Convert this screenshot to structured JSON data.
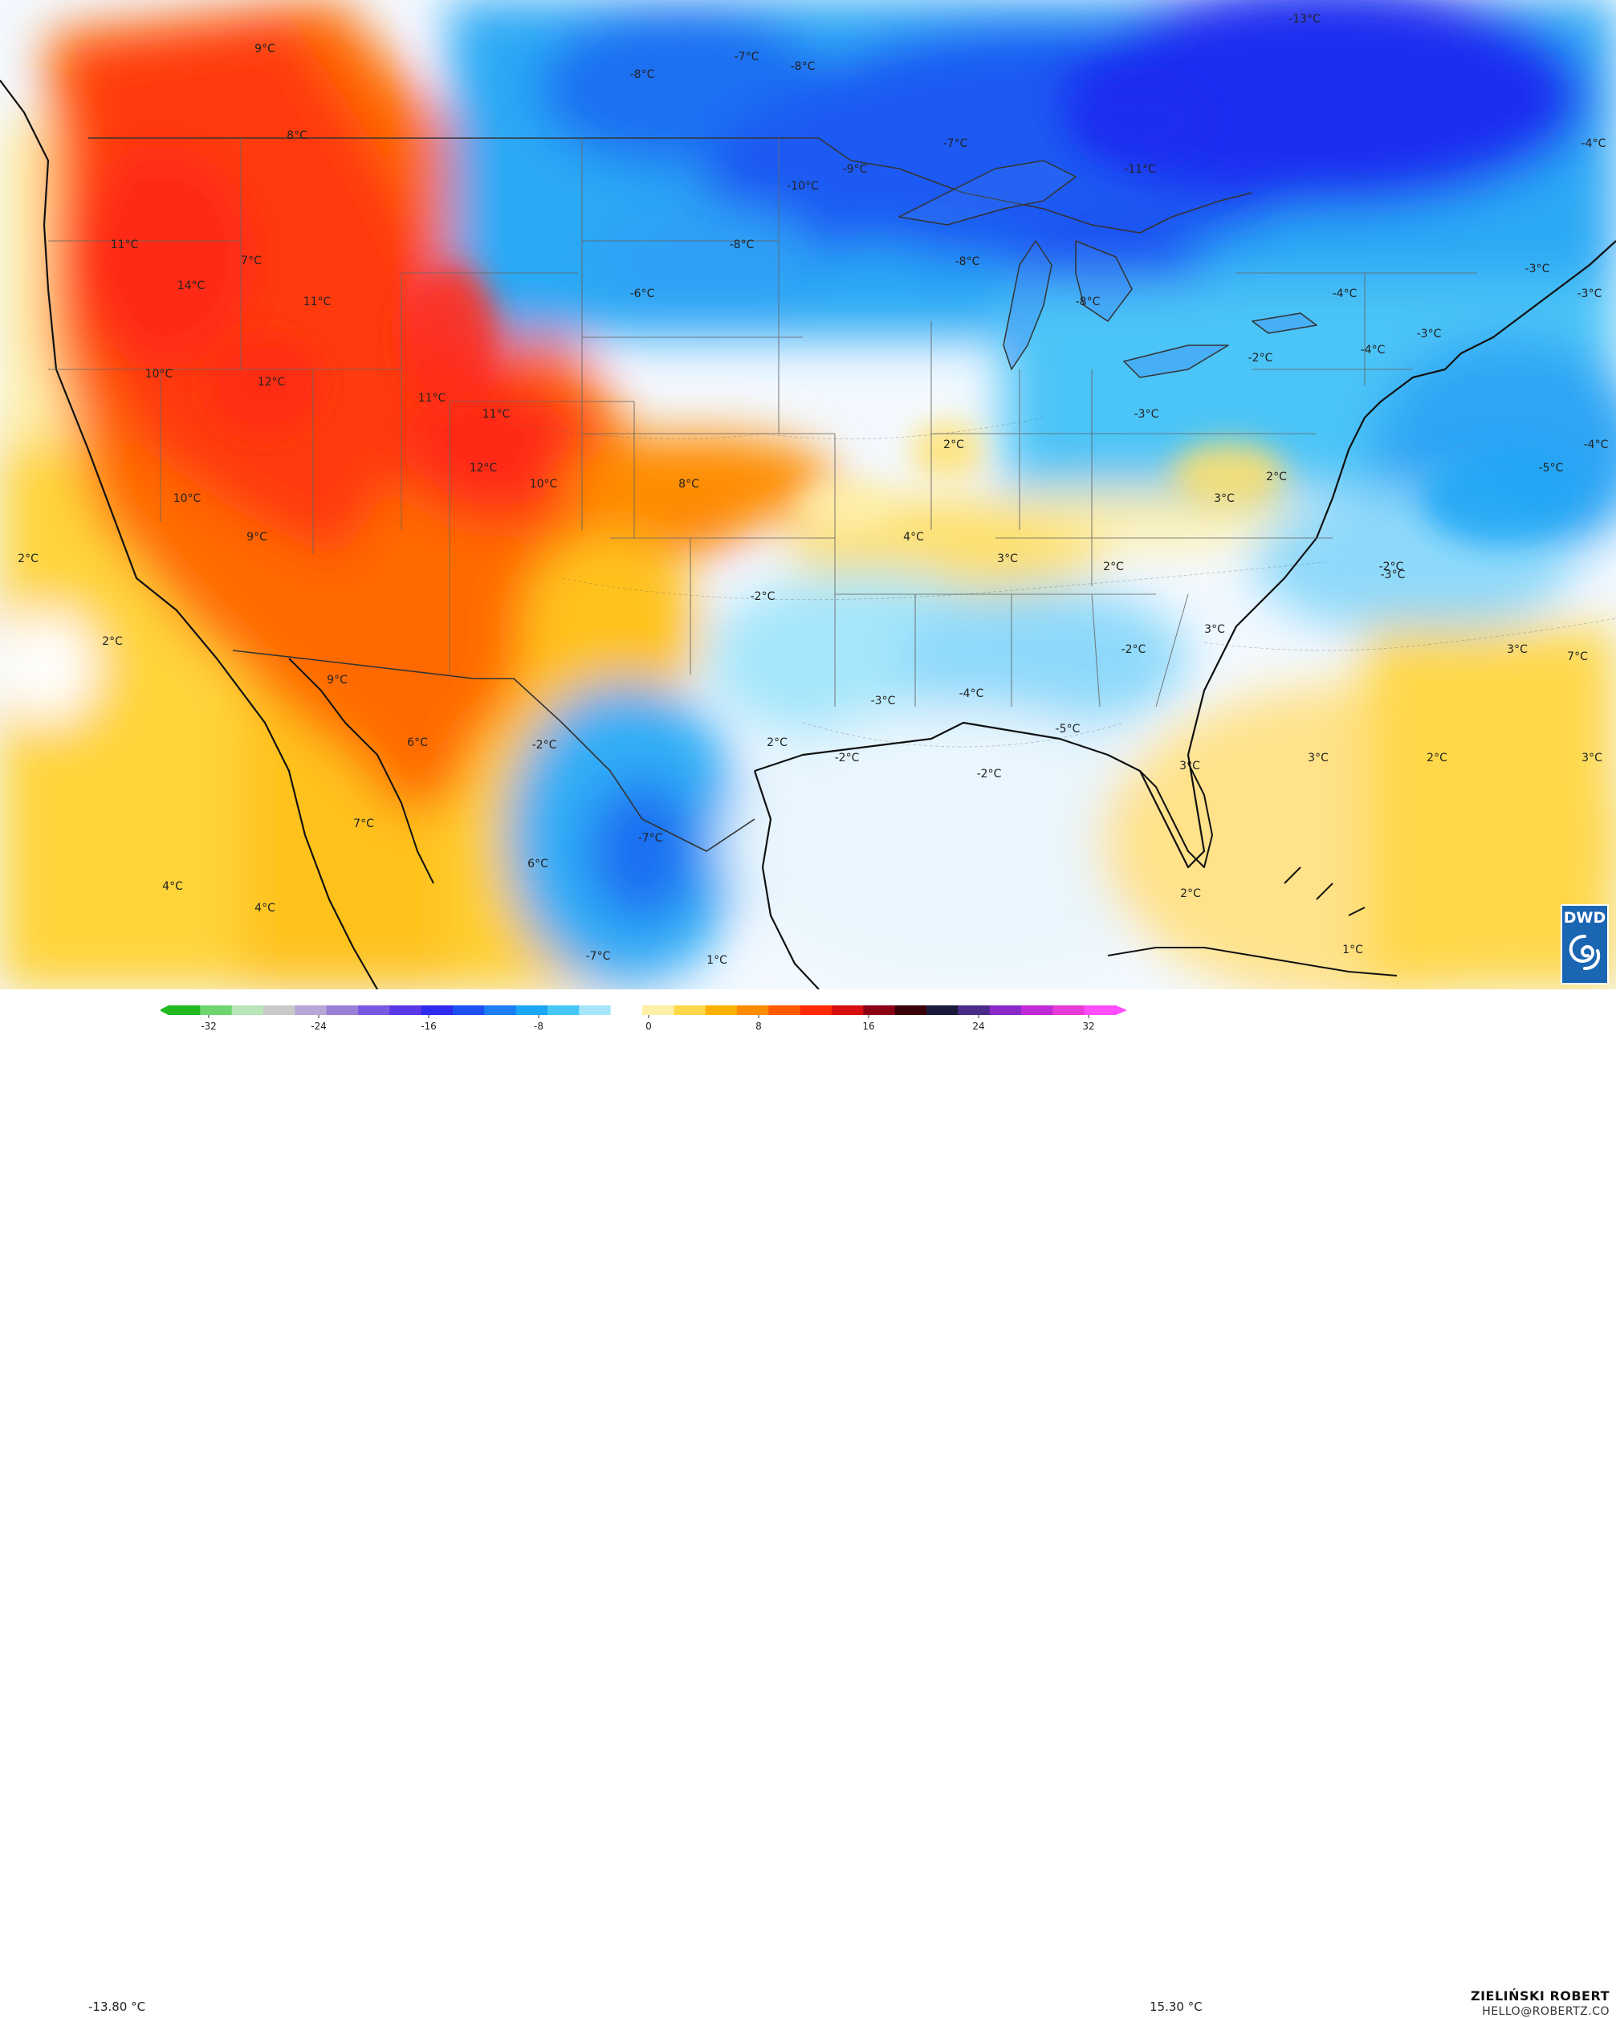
{
  "title": "",
  "unit": "°C",
  "colorbar": {
    "min_value": "-13.80 °C",
    "max_value": "15.30 °C",
    "ticks": [
      "-32",
      "-24",
      "-16",
      "-8",
      "0",
      "8",
      "16",
      "24",
      "32"
    ],
    "colors": [
      "#22b822",
      "#6ed56e",
      "#b9e6b9",
      "#c9c9c9",
      "#b8a6d8",
      "#9a7fd6",
      "#7a58e0",
      "#5a38e8",
      "#2f2bf0",
      "#1d4ff2",
      "#1b7ef3",
      "#1ba6f5",
      "#46c7f7",
      "#a6e6fb",
      "#ffffff",
      "#fff0a8",
      "#ffd84a",
      "#ffb000",
      "#ff8c00",
      "#ff5a00",
      "#ff2a00",
      "#d70d10",
      "#8c0015",
      "#3a0008",
      "#1a1a3a",
      "#4a2b8a",
      "#8a2bc8",
      "#c02ad6",
      "#e63bd6",
      "#ff4dff"
    ]
  },
  "credit": {
    "name": "ZIELIŃSKI ROBERT",
    "email": "HELLO@ROBERTZ.CO"
  },
  "logo_text": "DWD",
  "labels": [
    "9°C",
    "8°C",
    "-8°C",
    "-7°C",
    "-8°C",
    "-13°C",
    "-7°C",
    "-9°C",
    "-10°C",
    "-11°C",
    "-4°C",
    "11°C",
    "7°C",
    "14°C",
    "11°C",
    "-8°C",
    "-6°C",
    "-8°C",
    "-8°C",
    "-3°C",
    "-4°C",
    "-2°C",
    "-4°C",
    "-3°C",
    "-3°C",
    "10°C",
    "12°C",
    "11°C",
    "11°C",
    "2°C",
    "-3°C",
    "-4°C",
    "12°C",
    "10°C",
    "8°C",
    "2°C",
    "3°C",
    "-5°C",
    "10°C",
    "9°C",
    "4°C",
    "2°C",
    "3°C",
    "2°C",
    "-2°C",
    "-2°C",
    "-3°C",
    "3°C",
    "-2°C",
    "2°C",
    "3°C",
    "7°C",
    "-4°C",
    "-3°C",
    "9°C",
    "-5°C",
    "6°C",
    "-2°C",
    "2°C",
    "-2°C",
    "-2°C",
    "3°C",
    "2°C",
    "3°C",
    "3°C",
    "7°C",
    "-7°C",
    "4°C",
    "4°C",
    "6°C",
    "2°C",
    "-7°C",
    "1°C",
    "1°C"
  ]
}
